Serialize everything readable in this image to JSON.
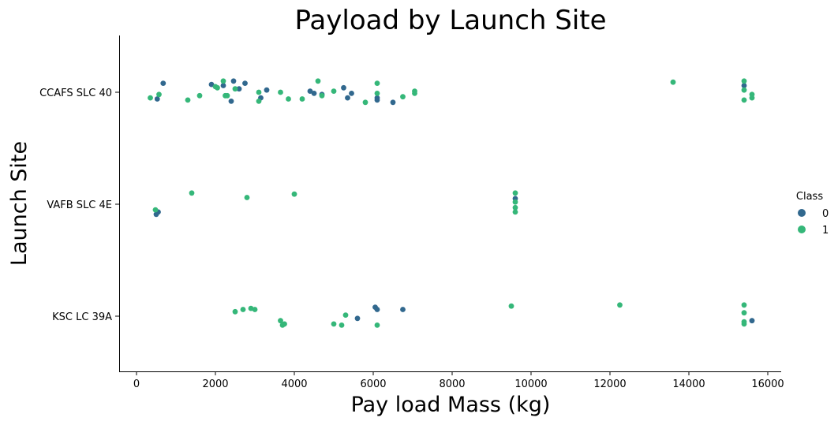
{
  "chart_data": {
    "type": "scatter",
    "subtype": "strip",
    "title": "Payload by Launch Site",
    "xlabel": "Pay load Mass (kg)",
    "ylabel": "Launch Site",
    "xlim": [
      -450,
      16300
    ],
    "xticks": [
      0,
      2000,
      4000,
      6000,
      8000,
      10000,
      12000,
      14000,
      16000
    ],
    "categories": [
      "CCAFS SLC 40",
      "VAFB SLC 4E",
      "KSC LC 39A"
    ],
    "legend": {
      "title": "Class",
      "placement": "right",
      "entries": [
        {
          "label": "0",
          "color": "#31688e"
        },
        {
          "label": "1",
          "color": "#35b779"
        }
      ]
    },
    "series": [
      {
        "class": "0",
        "color": "#31688e",
        "points": [
          {
            "site": "CCAFS SLC 40",
            "x": 677,
            "jitter": -0.08
          },
          {
            "site": "CCAFS SLC 40",
            "x": 525,
            "jitter": 0.06
          },
          {
            "site": "CCAFS SLC 40",
            "x": 1900,
            "jitter": -0.07
          },
          {
            "site": "CCAFS SLC 40",
            "x": 2200,
            "jitter": -0.06
          },
          {
            "site": "CCAFS SLC 40",
            "x": 2400,
            "jitter": 0.08
          },
          {
            "site": "CCAFS SLC 40",
            "x": 2460,
            "jitter": -0.1
          },
          {
            "site": "CCAFS SLC 40",
            "x": 2600,
            "jitter": -0.03
          },
          {
            "site": "CCAFS SLC 40",
            "x": 2750,
            "jitter": -0.08
          },
          {
            "site": "CCAFS SLC 40",
            "x": 3150,
            "jitter": 0.05
          },
          {
            "site": "CCAFS SLC 40",
            "x": 3300,
            "jitter": -0.02
          },
          {
            "site": "CCAFS SLC 40",
            "x": 4400,
            "jitter": -0.01
          },
          {
            "site": "CCAFS SLC 40",
            "x": 4500,
            "jitter": 0.01
          },
          {
            "site": "CCAFS SLC 40",
            "x": 4700,
            "jitter": 0.02
          },
          {
            "site": "CCAFS SLC 40",
            "x": 5250,
            "jitter": -0.04
          },
          {
            "site": "CCAFS SLC 40",
            "x": 5350,
            "jitter": 0.05
          },
          {
            "site": "CCAFS SLC 40",
            "x": 5450,
            "jitter": 0.01
          },
          {
            "site": "CCAFS SLC 40",
            "x": 6100,
            "jitter": 0.05
          },
          {
            "site": "CCAFS SLC 40",
            "x": 6100,
            "jitter": 0.07
          },
          {
            "site": "CCAFS SLC 40",
            "x": 6500,
            "jitter": 0.09
          },
          {
            "site": "CCAFS SLC 40",
            "x": 15400,
            "jitter": -0.06
          },
          {
            "site": "VAFB SLC 4E",
            "x": 500,
            "jitter": 0.09
          },
          {
            "site": "VAFB SLC 4E",
            "x": 550,
            "jitter": 0.07
          },
          {
            "site": "VAFB SLC 4E",
            "x": 9600,
            "jitter": -0.05
          },
          {
            "site": "KSC LC 39A",
            "x": 6050,
            "jitter": -0.08
          },
          {
            "site": "KSC LC 39A",
            "x": 6100,
            "jitter": -0.06
          },
          {
            "site": "KSC LC 39A",
            "x": 6750,
            "jitter": -0.06
          },
          {
            "site": "KSC LC 39A",
            "x": 5600,
            "jitter": 0.02
          },
          {
            "site": "KSC LC 39A",
            "x": 15600,
            "jitter": 0.04
          }
        ]
      },
      {
        "class": "1",
        "color": "#35b779",
        "points": [
          {
            "site": "CCAFS SLC 40",
            "x": 350,
            "jitter": 0.05
          },
          {
            "site": "CCAFS SLC 40",
            "x": 570,
            "jitter": 0.02
          },
          {
            "site": "CCAFS SLC 40",
            "x": 1300,
            "jitter": 0.07
          },
          {
            "site": "CCAFS SLC 40",
            "x": 1600,
            "jitter": 0.03
          },
          {
            "site": "CCAFS SLC 40",
            "x": 2000,
            "jitter": -0.05
          },
          {
            "site": "CCAFS SLC 40",
            "x": 2050,
            "jitter": -0.04
          },
          {
            "site": "CCAFS SLC 40",
            "x": 2200,
            "jitter": -0.1
          },
          {
            "site": "CCAFS SLC 40",
            "x": 2250,
            "jitter": 0.03
          },
          {
            "site": "CCAFS SLC 40",
            "x": 2300,
            "jitter": 0.03
          },
          {
            "site": "CCAFS SLC 40",
            "x": 2500,
            "jitter": -0.03
          },
          {
            "site": "CCAFS SLC 40",
            "x": 3100,
            "jitter": 0.0
          },
          {
            "site": "CCAFS SLC 40",
            "x": 3100,
            "jitter": 0.08
          },
          {
            "site": "CCAFS SLC 40",
            "x": 3650,
            "jitter": 0.0
          },
          {
            "site": "CCAFS SLC 40",
            "x": 3850,
            "jitter": 0.06
          },
          {
            "site": "CCAFS SLC 40",
            "x": 4200,
            "jitter": 0.06
          },
          {
            "site": "CCAFS SLC 40",
            "x": 4600,
            "jitter": -0.1
          },
          {
            "site": "CCAFS SLC 40",
            "x": 4700,
            "jitter": 0.03
          },
          {
            "site": "CCAFS SLC 40",
            "x": 5000,
            "jitter": -0.01
          },
          {
            "site": "CCAFS SLC 40",
            "x": 5800,
            "jitter": 0.09
          },
          {
            "site": "CCAFS SLC 40",
            "x": 6100,
            "jitter": -0.08
          },
          {
            "site": "CCAFS SLC 40",
            "x": 6100,
            "jitter": 0.01
          },
          {
            "site": "CCAFS SLC 40",
            "x": 6750,
            "jitter": 0.04
          },
          {
            "site": "CCAFS SLC 40",
            "x": 7050,
            "jitter": -0.01
          },
          {
            "site": "CCAFS SLC 40",
            "x": 7050,
            "jitter": 0.01
          },
          {
            "site": "CCAFS SLC 40",
            "x": 13600,
            "jitter": -0.09
          },
          {
            "site": "CCAFS SLC 40",
            "x": 15400,
            "jitter": -0.1
          },
          {
            "site": "CCAFS SLC 40",
            "x": 15400,
            "jitter": -0.02
          },
          {
            "site": "CCAFS SLC 40",
            "x": 15400,
            "jitter": 0.07
          },
          {
            "site": "CCAFS SLC 40",
            "x": 15600,
            "jitter": 0.02
          },
          {
            "site": "CCAFS SLC 40",
            "x": 15600,
            "jitter": 0.05
          },
          {
            "site": "VAFB SLC 4E",
            "x": 480,
            "jitter": 0.05
          },
          {
            "site": "VAFB SLC 4E",
            "x": 1400,
            "jitter": -0.1
          },
          {
            "site": "VAFB SLC 4E",
            "x": 2800,
            "jitter": -0.06
          },
          {
            "site": "VAFB SLC 4E",
            "x": 4000,
            "jitter": -0.09
          },
          {
            "site": "VAFB SLC 4E",
            "x": 9600,
            "jitter": -0.1
          },
          {
            "site": "VAFB SLC 4E",
            "x": 9600,
            "jitter": -0.02
          },
          {
            "site": "VAFB SLC 4E",
            "x": 9600,
            "jitter": 0.03
          },
          {
            "site": "VAFB SLC 4E",
            "x": 9600,
            "jitter": 0.07
          },
          {
            "site": "KSC LC 39A",
            "x": 2500,
            "jitter": -0.04
          },
          {
            "site": "KSC LC 39A",
            "x": 2700,
            "jitter": -0.06
          },
          {
            "site": "KSC LC 39A",
            "x": 2900,
            "jitter": -0.07
          },
          {
            "site": "KSC LC 39A",
            "x": 3000,
            "jitter": -0.06
          },
          {
            "site": "KSC LC 39A",
            "x": 3650,
            "jitter": 0.04
          },
          {
            "site": "KSC LC 39A",
            "x": 3700,
            "jitter": 0.08
          },
          {
            "site": "KSC LC 39A",
            "x": 3750,
            "jitter": 0.07
          },
          {
            "site": "KSC LC 39A",
            "x": 5000,
            "jitter": 0.07
          },
          {
            "site": "KSC LC 39A",
            "x": 5200,
            "jitter": 0.08
          },
          {
            "site": "KSC LC 39A",
            "x": 5300,
            "jitter": -0.01
          },
          {
            "site": "KSC LC 39A",
            "x": 6100,
            "jitter": 0.08
          },
          {
            "site": "KSC LC 39A",
            "x": 9500,
            "jitter": -0.09
          },
          {
            "site": "KSC LC 39A",
            "x": 12250,
            "jitter": -0.1
          },
          {
            "site": "KSC LC 39A",
            "x": 15400,
            "jitter": -0.1
          },
          {
            "site": "KSC LC 39A",
            "x": 15400,
            "jitter": -0.03
          },
          {
            "site": "KSC LC 39A",
            "x": 15400,
            "jitter": 0.05
          },
          {
            "site": "KSC LC 39A",
            "x": 15400,
            "jitter": 0.07
          }
        ]
      }
    ]
  }
}
